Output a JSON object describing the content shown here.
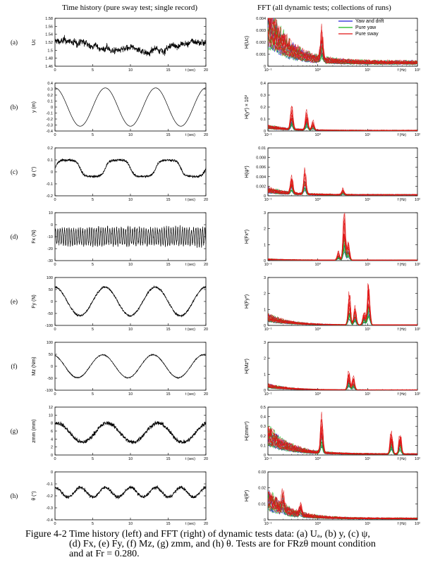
{
  "header": {
    "left_title": "Time history (pure sway test; single record)",
    "right_title": "FFT (all dynamic tests; collections of runs)"
  },
  "legend": {
    "items": [
      {
        "label": "Yaw and drift",
        "color": "#1f1fd6"
      },
      {
        "label": "Pure yaw",
        "color": "#18b818"
      },
      {
        "label": "Pure sway",
        "color": "#e01414"
      }
    ]
  },
  "caption": {
    "line1": "Figure 4-2 Time history (left) and FFT (right) of dynamic tests data: (a) Uₐ, (b) y, (c) ψ,",
    "line2": "(d) Fx, (e) Fy, (f) Mz, (g) zmm, and (h) θ.  Tests are for FRzθ mount condition",
    "line3": "and at Fr = 0.280."
  },
  "chart_data": [
    {
      "type": "line",
      "panel": "(a)",
      "ylabel": "Uc",
      "xlabel": "t (sec)",
      "xlim": [
        0,
        20
      ],
      "ylim": [
        1.46,
        1.58
      ],
      "xticks": [
        "0",
        "5",
        "10",
        "15",
        "20"
      ],
      "yticks": [
        "1.46",
        "1.48",
        "1.5",
        "1.52",
        "1.54",
        "1.56",
        "1.58"
      ],
      "signal": {
        "kind": "noisy",
        "mean": 1.51,
        "drift": 0.025,
        "noise": 0.008
      }
    },
    {
      "type": "line",
      "panel": "(b)",
      "ylabel": "y (m)",
      "xlabel": "t (sec)",
      "xlim": [
        0,
        20
      ],
      "ylim": [
        -0.4,
        0.4
      ],
      "xticks": [
        "0",
        "5",
        "10",
        "15",
        "20"
      ],
      "yticks": [
        "-0.4",
        "-0.3",
        "-0.2",
        "-0.1",
        "0",
        "0.1",
        "0.2",
        "0.3",
        "0.4"
      ],
      "signal": {
        "kind": "sine",
        "amplitude": 0.32,
        "period": 6.67,
        "phase": 1.57,
        "offset": 0,
        "noise": 0
      }
    },
    {
      "type": "line",
      "panel": "(c)",
      "ylabel": "ψ (°)",
      "xlabel": "t (sec)",
      "xlim": [
        0,
        20
      ],
      "ylim": [
        -0.2,
        0.2
      ],
      "xticks": [
        "0",
        "5",
        "10",
        "15",
        "20"
      ],
      "yticks": [
        "-0.2",
        "-0.1",
        "0",
        "0.1",
        "0.2"
      ],
      "signal": {
        "kind": "plateau",
        "amplitude": 0.07,
        "period": 6.67,
        "offset": 0.03,
        "noise": 0.012
      }
    },
    {
      "type": "line",
      "panel": "(d)",
      "ylabel": "Fx (N)",
      "xlabel": "t (sec)",
      "xlim": [
        0,
        20
      ],
      "ylim": [
        -30,
        10
      ],
      "xticks": [
        "0",
        "5",
        "10",
        "15",
        "20"
      ],
      "yticks": [
        "-30",
        "-20",
        "-10",
        "0",
        "10"
      ],
      "signal": {
        "kind": "osc",
        "amplitude": 7,
        "period": 0.3,
        "offset": -10,
        "noise": 2.5
      }
    },
    {
      "type": "line",
      "panel": "(e)",
      "ylabel": "Fy (N)",
      "xlabel": "t (sec)",
      "xlim": [
        0,
        20
      ],
      "ylim": [
        -100,
        100
      ],
      "xticks": [
        "0",
        "5",
        "10",
        "15",
        "20"
      ],
      "yticks": [
        "-100",
        "-50",
        "0",
        "50",
        "100"
      ],
      "signal": {
        "kind": "sine",
        "amplitude": 60,
        "period": 6.67,
        "phase": 1.6,
        "offset": 0,
        "noise": 5
      }
    },
    {
      "type": "line",
      "panel": "(f)",
      "ylabel": "Mz (Nm)",
      "xlabel": "t (sec)",
      "xlim": [
        0,
        20
      ],
      "ylim": [
        -100,
        100
      ],
      "xticks": [
        "0",
        "5",
        "10",
        "15",
        "20"
      ],
      "yticks": [
        "-100",
        "-50",
        "0",
        "50",
        "100"
      ],
      "signal": {
        "kind": "sine",
        "amplitude": 48,
        "period": 6.67,
        "phase": 1.9,
        "offset": 0,
        "noise": 2
      }
    },
    {
      "type": "line",
      "panel": "(g)",
      "ylabel": "zmm (mm)",
      "xlabel": "t (sec)",
      "xlim": [
        0,
        20
      ],
      "ylim": [
        0,
        12
      ],
      "xticks": [
        "0",
        "5",
        "10",
        "15",
        "20"
      ],
      "yticks": [
        "0",
        "2",
        "4",
        "6",
        "8",
        "10",
        "12"
      ],
      "signal": {
        "kind": "sine",
        "amplitude": 2.4,
        "period": 6.67,
        "phase": 1.3,
        "offset": 5.6,
        "noise": 0.6
      }
    },
    {
      "type": "line",
      "panel": "(h)",
      "ylabel": "θ (°)",
      "xlabel": "t (sec)",
      "xlim": [
        0,
        20
      ],
      "ylim": [
        -0.4,
        0
      ],
      "xticks": [
        "0",
        "5",
        "10",
        "15",
        "20"
      ],
      "yticks": [
        "-0.4",
        "-0.3",
        "-0.2",
        "-0.1",
        "0"
      ],
      "signal": {
        "kind": "sine",
        "amplitude": 0.04,
        "period": 3.33,
        "phase": 1.5,
        "offset": -0.17,
        "noise": 0.015
      }
    },
    {
      "type": "line",
      "panel": "(a) FFT",
      "ylabel": "H(Uc)",
      "xlabel": "f (Hz)",
      "xscale": "log",
      "xlim": [
        0.1,
        100
      ],
      "ylim": [
        0,
        0.004
      ],
      "xticks": [
        "10⁻¹",
        "10⁰",
        "10¹",
        "10²"
      ],
      "yticks": [
        "0",
        "0.001",
        "0.002",
        "0.003",
        "0.004"
      ],
      "spectrum": {
        "decay": 0.0032,
        "floor": 0.0003,
        "peaks": [
          [
            1.2,
            0.0017
          ]
        ],
        "yscale": 1
      }
    },
    {
      "type": "line",
      "panel": "(b) FFT",
      "ylabel": "H(y*) × 10³",
      "xlabel": "f (Hz)",
      "xscale": "log",
      "xlim": [
        0.1,
        100
      ],
      "ylim": [
        0,
        0.4
      ],
      "xticks": [
        "10⁻¹",
        "10⁰",
        "10¹",
        "10²"
      ],
      "yticks": [
        "0",
        "0.1",
        "0.2",
        "0.3",
        "0.4"
      ],
      "spectrum": {
        "decay": 0.03,
        "floor": 0.005,
        "peaks": [
          [
            0.3,
            0.13
          ],
          [
            0.6,
            0.11
          ],
          [
            0.8,
            0.05
          ]
        ],
        "yscale": 1
      }
    },
    {
      "type": "line",
      "panel": "(c) FFT",
      "ylabel": "H(ψ*)",
      "xlabel": "f (Hz)",
      "xscale": "log",
      "xlim": [
        0.1,
        100
      ],
      "ylim": [
        0,
        0.01
      ],
      "xticks": [
        "10⁻¹",
        "10⁰",
        "10¹",
        "10²"
      ],
      "yticks": [
        "0",
        "0.002",
        "0.004",
        "0.006",
        "0.008",
        "0.01"
      ],
      "spectrum": {
        "decay": 0.001,
        "floor": 0.0002,
        "peaks": [
          [
            0.3,
            0.0025
          ],
          [
            0.55,
            0.0035
          ],
          [
            3.2,
            0.0008
          ]
        ],
        "yscale": 1
      }
    },
    {
      "type": "line",
      "panel": "(d) FFT",
      "ylabel": "H(Fx*)",
      "xlabel": "f (Hz)",
      "xscale": "log",
      "xlim": [
        0.1,
        100
      ],
      "ylim": [
        0,
        3
      ],
      "xticks": [
        "10⁻¹",
        "10⁰",
        "10¹",
        "10²"
      ],
      "yticks": [
        "0",
        "1",
        "2",
        "3"
      ],
      "spectrum": {
        "decay": 0.05,
        "floor": 0.03,
        "peaks": [
          [
            3.4,
            2.0
          ],
          [
            4.1,
            0.8
          ],
          [
            2.6,
            0.35
          ]
        ],
        "yscale": 1
      }
    },
    {
      "type": "line",
      "panel": "(e) FFT",
      "ylabel": "H(Fy*)",
      "xlabel": "f (Hz)",
      "xscale": "log",
      "xlim": [
        0.1,
        100
      ],
      "ylim": [
        0,
        3
      ],
      "xticks": [
        "10⁻¹",
        "10⁰",
        "10¹",
        "10²"
      ],
      "yticks": [
        "0",
        "1",
        "2",
        "3"
      ],
      "spectrum": {
        "decay": 0.45,
        "floor": 0.03,
        "peaks": [
          [
            4.3,
            1.35
          ],
          [
            5.6,
            0.8
          ],
          [
            10.5,
            1.9
          ],
          [
            8.5,
            0.6
          ]
        ],
        "yscale": 1
      }
    },
    {
      "type": "line",
      "panel": "(f) FFT",
      "ylabel": "H(Mz*)",
      "xlabel": "f (Hz)",
      "xscale": "log",
      "xlim": [
        0.1,
        100
      ],
      "ylim": [
        0,
        3
      ],
      "xticks": [
        "10⁻¹",
        "10⁰",
        "10¹",
        "10²"
      ],
      "yticks": [
        "0",
        "1",
        "2",
        "3"
      ],
      "spectrum": {
        "decay": 0.25,
        "floor": 0.02,
        "peaks": [
          [
            4.2,
            0.8
          ],
          [
            5.2,
            0.55
          ]
        ],
        "yscale": 1
      }
    },
    {
      "type": "line",
      "panel": "(g) FFT",
      "ylabel": "H(zmm*)",
      "xlabel": "f (Hz)",
      "xscale": "log",
      "xlim": [
        0.1,
        100
      ],
      "ylim": [
        0,
        0.5
      ],
      "xticks": [
        "10⁻¹",
        "10⁰",
        "10¹",
        "10²"
      ],
      "yticks": [
        "0",
        "0.1",
        "0.2",
        "0.3",
        "0.4",
        "0.5"
      ],
      "spectrum": {
        "decay": 0.2,
        "floor": 0.01,
        "peaks": [
          [
            1.2,
            0.25
          ],
          [
            30,
            0.18
          ],
          [
            45,
            0.16
          ]
        ],
        "yscale": 1
      }
    },
    {
      "type": "line",
      "panel": "(h) FFT",
      "ylabel": "H(θ*)",
      "xlabel": "f (Hz)",
      "xscale": "log",
      "xlim": [
        0.1,
        100
      ],
      "ylim": [
        0,
        0.03
      ],
      "xticks": [
        "10⁻¹",
        "10⁰",
        "10¹",
        "10²"
      ],
      "yticks": [
        "0",
        "0.01",
        "0.02",
        "0.03"
      ],
      "spectrum": {
        "decay": 0.012,
        "floor": 0.0008,
        "peaks": [
          [
            0.2,
            0.006
          ],
          [
            0.45,
            0.004
          ]
        ],
        "yscale": 1
      }
    }
  ]
}
